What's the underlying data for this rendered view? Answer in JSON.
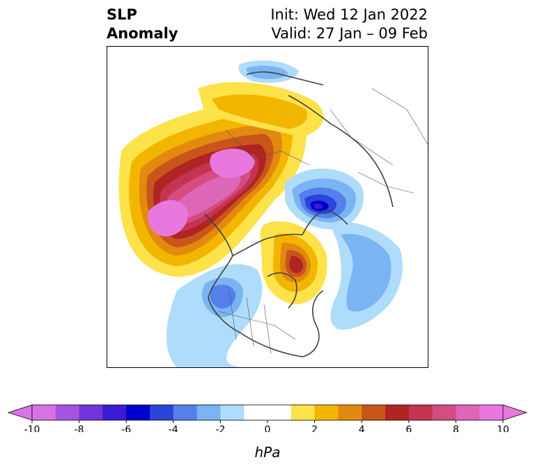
{
  "title": {
    "left_line1": "SLP",
    "left_line2": "Anomaly",
    "right_line1": "Init: Wed 12 Jan 2022",
    "right_line2": "Valid: 27 Jan – 09 Feb"
  },
  "colorbar": {
    "unit": "hPa",
    "ticks": [
      "-10",
      "-8",
      "-6",
      "-4",
      "-2",
      "0",
      "2",
      "4",
      "6",
      "8",
      "10"
    ],
    "colors": [
      "#d873e6",
      "#a454e0",
      "#7234dc",
      "#3a1cd4",
      "#0000cc",
      "#2a44dc",
      "#5480ec",
      "#7ab4f2",
      "#aedcfa",
      "#ffffff",
      "#ffffff",
      "#fde24a",
      "#f2b600",
      "#e28a10",
      "#c8561a",
      "#b02424",
      "#c23450",
      "#d44c80",
      "#de66b6",
      "#e878de"
    ]
  },
  "map": {
    "projection": "north-polar-stereographic",
    "variable": "sea-level-pressure-anomaly"
  }
}
